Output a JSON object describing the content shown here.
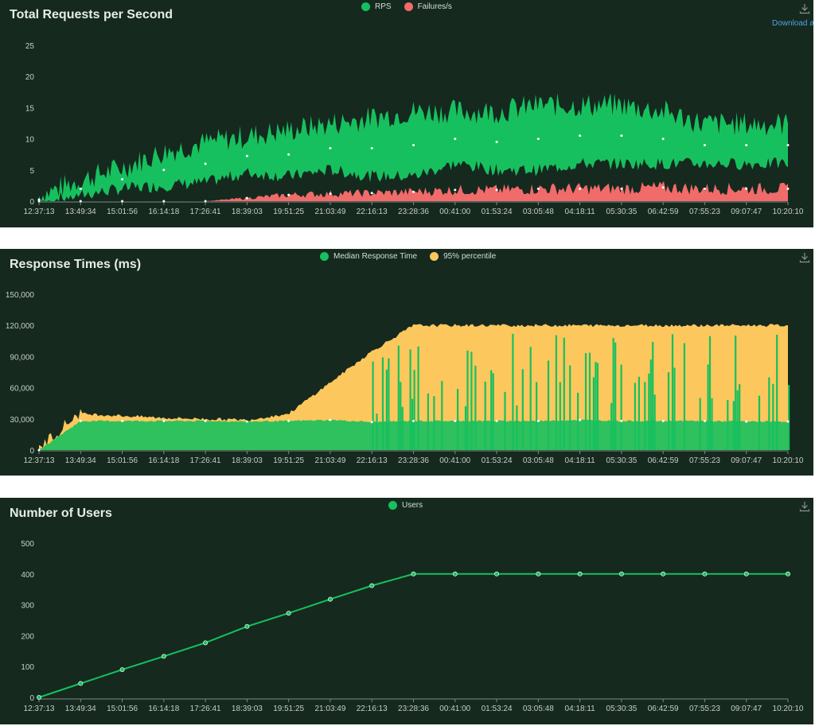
{
  "colors": {
    "bg": "#15291f",
    "rps": "#17c05e",
    "failures": "#f16b6b",
    "median": "#17c05e",
    "p95": "#fcc75c",
    "users": "#17c05e",
    "axis": "#7d8b84"
  },
  "download_label": "Download a",
  "panels": {
    "rps": {
      "title": "Total Requests per Second",
      "legend": [
        "RPS",
        "Failures/s"
      ]
    },
    "response": {
      "title": "Response Times (ms)",
      "legend": [
        "Median Response Time",
        "95% percentile"
      ]
    },
    "users": {
      "title": "Number of Users",
      "legend": [
        "Users"
      ]
    }
  },
  "x_ticks": [
    "12:37:13",
    "13:49:34",
    "15:01:56",
    "16:14:18",
    "17:26:41",
    "18:39:03",
    "19:51:25",
    "21:03:49",
    "22:16:13",
    "23:28:36",
    "00:41:00",
    "01:53:24",
    "03:05:48",
    "04:18:11",
    "05:30:35",
    "06:42:59",
    "07:55:23",
    "09:07:47",
    "10:20:10"
  ],
  "chart_data": [
    {
      "type": "area",
      "title": "Total Requests per Second",
      "categories": [
        "12:37:13",
        "13:49:34",
        "15:01:56",
        "16:14:18",
        "17:26:41",
        "18:39:03",
        "19:51:25",
        "21:03:49",
        "22:16:13",
        "23:28:36",
        "00:41:00",
        "01:53:24",
        "03:05:48",
        "04:18:11",
        "05:30:35",
        "06:42:59",
        "07:55:23",
        "09:07:47",
        "10:20:10"
      ],
      "y_ticks": [
        "0",
        "5",
        "10",
        "15",
        "20",
        "25"
      ],
      "ylim": [
        0,
        25
      ],
      "series": [
        {
          "name": "RPS",
          "upper": [
            0.5,
            3,
            5,
            7.5,
            9,
            10,
            11,
            12,
            13,
            14,
            14,
            14,
            15,
            15,
            15,
            14,
            12,
            12,
            12
          ],
          "lower": [
            0,
            1,
            2,
            2.5,
            3,
            4.5,
            4,
            5,
            4,
            4,
            6,
            5,
            5,
            6,
            6,
            6,
            6,
            6,
            6
          ]
        },
        {
          "name": "Failures/s",
          "values": [
            0,
            0,
            0,
            0,
            0,
            0.5,
            1,
            1.2,
            1.3,
            1.5,
            1.8,
            1.8,
            2,
            2,
            2,
            2.2,
            2,
            2,
            2
          ]
        }
      ]
    },
    {
      "type": "area",
      "title": "Response Times (ms)",
      "categories": [
        "12:37:13",
        "13:49:34",
        "15:01:56",
        "16:14:18",
        "17:26:41",
        "18:39:03",
        "19:51:25",
        "21:03:49",
        "22:16:13",
        "23:28:36",
        "00:41:00",
        "01:53:24",
        "03:05:48",
        "04:18:11",
        "05:30:35",
        "06:42:59",
        "07:55:23",
        "09:07:47",
        "10:20:10"
      ],
      "y_ticks": [
        "0",
        "30,000",
        "60,000",
        "90,000",
        "120,000",
        "150,000"
      ],
      "ylim": [
        0,
        150000
      ],
      "series": [
        {
          "name": "Median Response Time",
          "values": [
            0,
            28000,
            28000,
            28000,
            28000,
            27500,
            28000,
            29000,
            27000,
            28000,
            28000,
            28000,
            28000,
            29000,
            28000,
            28000,
            28000,
            27500,
            27500
          ]
        },
        {
          "name": "95% percentile",
          "values": [
            0,
            35000,
            33000,
            31000,
            30000,
            29000,
            35000,
            65000,
            95000,
            120000,
            120000,
            120000,
            120000,
            120000,
            120000,
            120000,
            120000,
            120000,
            120000
          ]
        }
      ]
    },
    {
      "type": "line",
      "title": "Number of Users",
      "categories": [
        "12:37:13",
        "13:49:34",
        "15:01:56",
        "16:14:18",
        "17:26:41",
        "18:39:03",
        "19:51:25",
        "21:03:49",
        "22:16:13",
        "23:28:36",
        "00:41:00",
        "01:53:24",
        "03:05:48",
        "04:18:11",
        "05:30:35",
        "06:42:59",
        "07:55:23",
        "09:07:47",
        "10:20:10"
      ],
      "y_ticks": [
        "0",
        "100",
        "200",
        "300",
        "400",
        "500"
      ],
      "ylim": [
        0,
        500
      ],
      "series": [
        {
          "name": "Users",
          "values": [
            0,
            45,
            90,
            133,
            177,
            230,
            273,
            318,
            362,
            400,
            400,
            400,
            400,
            400,
            400,
            400,
            400,
            400,
            400
          ]
        }
      ]
    }
  ]
}
